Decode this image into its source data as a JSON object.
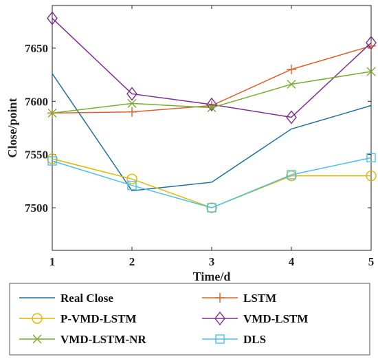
{
  "chart_data": {
    "type": "line",
    "title": "",
    "xlabel": "Time/d",
    "ylabel": "Close/point",
    "x": [
      1,
      2,
      3,
      4,
      5
    ],
    "xlim": [
      1,
      5
    ],
    "ylim": [
      7460,
      7690
    ],
    "xticks": [
      1,
      2,
      3,
      4,
      5
    ],
    "yticks": [
      7500,
      7550,
      7600,
      7650
    ],
    "grid": false,
    "legend_position": "bottom",
    "series": [
      {
        "name": "Real Close",
        "values": [
          7626,
          7516,
          7524,
          7574,
          7596
        ],
        "color": "#1f6f9f",
        "marker": "none"
      },
      {
        "name": "LSTM",
        "values": [
          7589,
          7590,
          7596,
          7630,
          7652
        ],
        "color": "#d9622b",
        "marker": "plus"
      },
      {
        "name": "P-VMD-LSTM",
        "values": [
          7546,
          7527,
          7500,
          7530,
          7530
        ],
        "color": "#e3b400",
        "marker": "circle"
      },
      {
        "name": "VMD-LSTM",
        "values": [
          7678,
          7607,
          7597,
          7585,
          7655
        ],
        "color": "#7b2f8e",
        "marker": "diamond"
      },
      {
        "name": "VMD-LSTM-NR",
        "values": [
          7589,
          7598,
          7594,
          7616,
          7628
        ],
        "color": "#77ac30",
        "marker": "x"
      },
      {
        "name": "DLS",
        "values": [
          7544,
          7521,
          7500,
          7531,
          7547
        ],
        "color": "#4dbeee",
        "marker": "square"
      }
    ]
  }
}
